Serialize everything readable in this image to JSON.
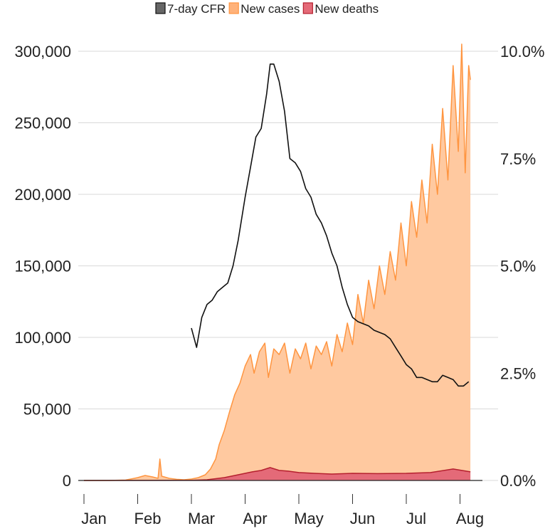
{
  "chart_data": {
    "type": "area",
    "title": "",
    "xlabel": "",
    "ylabel": "",
    "x_ticks": [
      "Jan",
      "Feb",
      "Mar",
      "Apr",
      "May",
      "Jun",
      "Jul",
      "Aug"
    ],
    "y_ticks": [
      "0",
      "50,000",
      "100,000",
      "150,000",
      "200,000",
      "250,000",
      "300,000"
    ],
    "y2_ticks": [
      "0.0%",
      "2.5%",
      "5.0%",
      "7.5%",
      "10.0%"
    ],
    "ylim": [
      0,
      300000
    ],
    "y2lim": [
      0,
      10
    ],
    "grid": true,
    "legend_position": "top",
    "series": [
      {
        "name": "7-day CFR",
        "axis": "right",
        "style": "line",
        "color": "#111111",
        "points": [
          [
            "Mar 1",
            3.55
          ],
          [
            "Mar 4",
            3.1
          ],
          [
            "Mar 7",
            3.8
          ],
          [
            "Mar 10",
            4.1
          ],
          [
            "Mar 13",
            4.2
          ],
          [
            "Mar 16",
            4.4
          ],
          [
            "Mar 19",
            4.5
          ],
          [
            "Mar 22",
            4.6
          ],
          [
            "Mar 25",
            5.0
          ],
          [
            "Mar 28",
            5.6
          ],
          [
            "Apr 1",
            6.6
          ],
          [
            "Apr 4",
            7.3
          ],
          [
            "Apr 7",
            8.0
          ],
          [
            "Apr 10",
            8.2
          ],
          [
            "Apr 13",
            9.0
          ],
          [
            "Apr 15",
            9.7
          ],
          [
            "Apr 17",
            9.7
          ],
          [
            "Apr 20",
            9.3
          ],
          [
            "Apr 23",
            8.6
          ],
          [
            "Apr 26",
            7.5
          ],
          [
            "Apr 29",
            7.4
          ],
          [
            "May 2",
            7.2
          ],
          [
            "May 5",
            6.8
          ],
          [
            "May 8",
            6.6
          ],
          [
            "May 11",
            6.2
          ],
          [
            "May 14",
            6.0
          ],
          [
            "May 17",
            5.7
          ],
          [
            "May 20",
            5.3
          ],
          [
            "May 23",
            5.0
          ],
          [
            "May 26",
            4.5
          ],
          [
            "May 29",
            4.1
          ],
          [
            "Jun 1",
            3.8
          ],
          [
            "Jun 4",
            3.7
          ],
          [
            "Jun 7",
            3.65
          ],
          [
            "Jun 10",
            3.6
          ],
          [
            "Jun 13",
            3.5
          ],
          [
            "Jun 16",
            3.45
          ],
          [
            "Jun 19",
            3.4
          ],
          [
            "Jun 22",
            3.3
          ],
          [
            "Jun 25",
            3.1
          ],
          [
            "Jun 28",
            2.9
          ],
          [
            "Jul 1",
            2.7
          ],
          [
            "Jul 4",
            2.6
          ],
          [
            "Jul 7",
            2.4
          ],
          [
            "Jul 10",
            2.4
          ],
          [
            "Jul 13",
            2.35
          ],
          [
            "Jul 16",
            2.3
          ],
          [
            "Jul 19",
            2.3
          ],
          [
            "Jul 22",
            2.45
          ],
          [
            "Jul 25",
            2.4
          ],
          [
            "Jul 28",
            2.35
          ],
          [
            "Jul 31",
            2.2
          ],
          [
            "Aug 3",
            2.2
          ],
          [
            "Aug 6",
            2.3
          ]
        ]
      },
      {
        "name": "New cases",
        "axis": "left",
        "style": "area",
        "color": "#ff9540",
        "fill": "#ffc9a0",
        "points": [
          [
            "Jan 1",
            0
          ],
          [
            "Jan 15",
            0
          ],
          [
            "Jan 25",
            300
          ],
          [
            "Jan 28",
            1000
          ],
          [
            "Feb 1",
            2000
          ],
          [
            "Feb 5",
            3500
          ],
          [
            "Feb 9",
            2500
          ],
          [
            "Feb 12",
            1500
          ],
          [
            "Feb 13",
            15000
          ],
          [
            "Feb 14",
            3000
          ],
          [
            "Feb 18",
            1500
          ],
          [
            "Feb 22",
            800
          ],
          [
            "Feb 26",
            500
          ],
          [
            "Mar 1",
            1000
          ],
          [
            "Mar 5",
            2000
          ],
          [
            "Mar 9",
            4000
          ],
          [
            "Mar 12",
            8000
          ],
          [
            "Mar 15",
            15000
          ],
          [
            "Mar 17",
            25000
          ],
          [
            "Mar 20",
            35000
          ],
          [
            "Mar 23",
            48000
          ],
          [
            "Mar 26",
            60000
          ],
          [
            "Mar 29",
            68000
          ],
          [
            "Apr 1",
            80000
          ],
          [
            "Apr 4",
            88000
          ],
          [
            "Apr 6",
            75000
          ],
          [
            "Apr 9",
            90000
          ],
          [
            "Apr 12",
            96000
          ],
          [
            "Apr 14",
            72000
          ],
          [
            "Apr 17",
            92000
          ],
          [
            "Apr 20",
            88000
          ],
          [
            "Apr 23",
            96000
          ],
          [
            "Apr 26",
            75000
          ],
          [
            "Apr 29",
            92000
          ],
          [
            "May 2",
            85000
          ],
          [
            "May 5",
            96000
          ],
          [
            "May 8",
            78000
          ],
          [
            "May 11",
            94000
          ],
          [
            "May 14",
            88000
          ],
          [
            "May 17",
            97000
          ],
          [
            "May 20",
            80000
          ],
          [
            "May 23",
            102000
          ],
          [
            "May 26",
            90000
          ],
          [
            "May 29",
            110000
          ],
          [
            "Jun 1",
            95000
          ],
          [
            "Jun 4",
            130000
          ],
          [
            "Jun 7",
            110000
          ],
          [
            "Jun 10",
            140000
          ],
          [
            "Jun 13",
            120000
          ],
          [
            "Jun 16",
            150000
          ],
          [
            "Jun 19",
            130000
          ],
          [
            "Jun 22",
            160000
          ],
          [
            "Jun 25",
            140000
          ],
          [
            "Jun 28",
            180000
          ],
          [
            "Jul 1",
            150000
          ],
          [
            "Jul 4",
            195000
          ],
          [
            "Jul 7",
            170000
          ],
          [
            "Jul 10",
            210000
          ],
          [
            "Jul 13",
            180000
          ],
          [
            "Jul 16",
            235000
          ],
          [
            "Jul 19",
            200000
          ],
          [
            "Jul 22",
            260000
          ],
          [
            "Jul 25",
            210000
          ],
          [
            "Jul 28",
            290000
          ],
          [
            "Jul 31",
            230000
          ],
          [
            "Aug 2",
            305000
          ],
          [
            "Aug 4",
            215000
          ],
          [
            "Aug 6",
            290000
          ],
          [
            "Aug 7",
            280000
          ]
        ]
      },
      {
        "name": "New deaths",
        "axis": "left",
        "style": "area",
        "color": "#b5202e",
        "fill": "#e46a78",
        "points": [
          [
            "Jan 1",
            0
          ],
          [
            "Feb 1",
            50
          ],
          [
            "Mar 1",
            150
          ],
          [
            "Mar 10",
            500
          ],
          [
            "Mar 20",
            2000
          ],
          [
            "Mar 28",
            4000
          ],
          [
            "Apr 5",
            6000
          ],
          [
            "Apr 10",
            7000
          ],
          [
            "Apr 15",
            9000
          ],
          [
            "Apr 20",
            7000
          ],
          [
            "Apr 25",
            6500
          ],
          [
            "May 1",
            5500
          ],
          [
            "May 10",
            5000
          ],
          [
            "May 20",
            4500
          ],
          [
            "Jun 1",
            5000
          ],
          [
            "Jun 15",
            4800
          ],
          [
            "Jul 1",
            5000
          ],
          [
            "Jul 15",
            5500
          ],
          [
            "Jul 28",
            8000
          ],
          [
            "Aug 7",
            6000
          ]
        ]
      }
    ]
  }
}
